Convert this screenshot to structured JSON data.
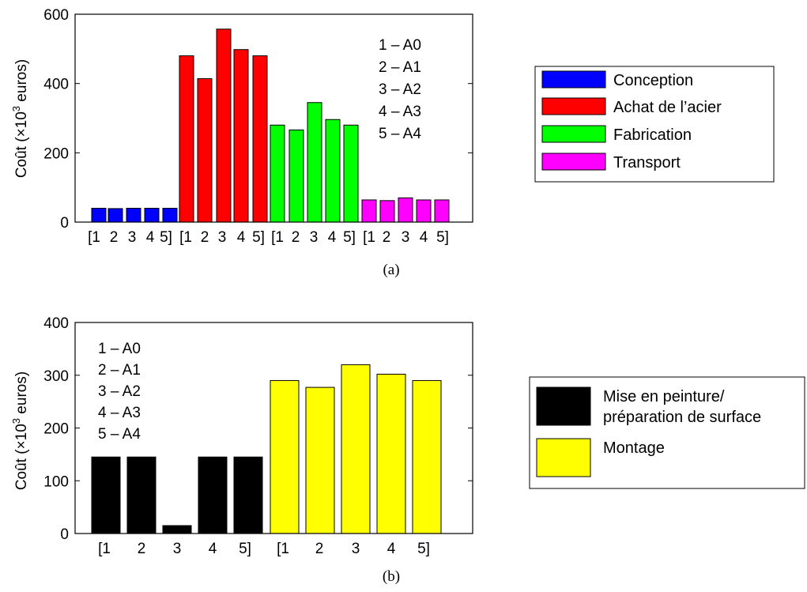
{
  "chart_data": [
    {
      "type": "bar",
      "caption": "(a)",
      "ylabel_main": "Coût (×10",
      "ylabel_exp": "3",
      "ylabel_tail": " euros)",
      "ylim": [
        0,
        600
      ],
      "yticks": [
        0,
        200,
        400,
        600
      ],
      "xtick_labels": [
        "[1",
        "2",
        "3",
        "4",
        "5]",
        "[1",
        "2",
        "3",
        "4",
        "5]",
        "[1",
        "2",
        "3",
        "4",
        "5]",
        "[1",
        "2",
        "3",
        "4",
        "5]"
      ],
      "annotation": [
        "1 – A0",
        "2 – A1",
        "3 – A2",
        "4 – A3",
        "5 – A4"
      ],
      "grid": false,
      "legend_position": "outside-right",
      "series": [
        {
          "name": "Conception",
          "color": "#0000ff",
          "values": [
            40,
            39,
            40,
            40,
            40
          ]
        },
        {
          "name": "Achat de l’acier",
          "color": "#ff0000",
          "values": [
            480,
            414,
            557,
            498,
            480
          ]
        },
        {
          "name": "Fabrication",
          "color": "#00ff00",
          "values": [
            280,
            266,
            345,
            296,
            280
          ]
        },
        {
          "name": "Transport",
          "color": "#ff00ff",
          "values": [
            64,
            62,
            70,
            64,
            64
          ]
        }
      ]
    },
    {
      "type": "bar",
      "caption": "(b)",
      "ylabel_main": "Coût (×10",
      "ylabel_exp": "3",
      "ylabel_tail": " euros)",
      "ylim": [
        0,
        400
      ],
      "yticks": [
        0,
        100,
        200,
        300,
        400
      ],
      "xtick_labels": [
        "[1",
        "2",
        "3",
        "4",
        "5]",
        "[1",
        "2",
        "3",
        "4",
        "5]"
      ],
      "annotation": [
        "1 – A0",
        "2 – A1",
        "3 – A2",
        "4 – A3",
        "5 – A4"
      ],
      "grid": false,
      "legend_position": "outside-right",
      "series": [
        {
          "name": "Mise en peinture/\npréparation de surface",
          "color": "#000000",
          "values": [
            145,
            145,
            15,
            145,
            145
          ]
        },
        {
          "name": "Montage",
          "color": "#ffff00",
          "values": [
            290,
            277,
            320,
            302,
            290
          ]
        }
      ]
    }
  ]
}
